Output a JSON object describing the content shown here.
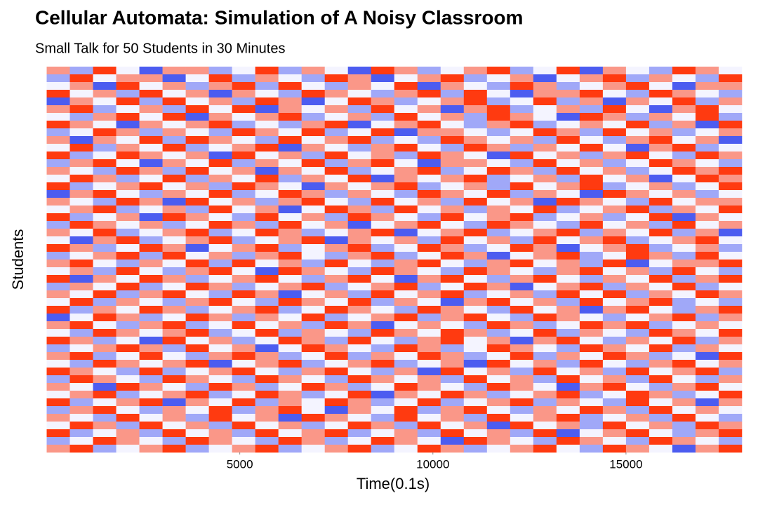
{
  "chart_data": {
    "type": "heatmap",
    "title": "Cellular Automata: Simulation of A Noisy Classroom",
    "subtitle": "Small Talk for 50 Students in 30 Minutes",
    "x_label": "Time(0.1s)",
    "y_label": "Students",
    "xlim": [
      -300,
      18200
    ],
    "xticks": [
      5000,
      10000,
      15000
    ],
    "tile_width": 600,
    "x": [
      300,
      900,
      1500,
      2100,
      2700,
      3300,
      3900,
      4500,
      5100,
      5700,
      6300,
      6900,
      7500,
      8100,
      8700,
      9300,
      9900,
      10500,
      11100,
      11700,
      12300,
      12900,
      13500,
      14100,
      14700,
      15300,
      15900,
      16500,
      17100,
      17700
    ],
    "clim": [
      -2,
      2
    ],
    "low_color": "#4c5cf0",
    "mid_color": "#f4f4ff",
    "high_color": "#ff3a10",
    "values": [
      [
        1,
        -1,
        2,
        0,
        -2,
        1,
        1,
        -1,
        0,
        2,
        -1,
        1,
        0,
        -2,
        2,
        1,
        -1,
        0,
        1,
        2,
        -1,
        0,
        2,
        -2,
        1,
        0,
        -1,
        2,
        1,
        0
      ],
      [
        -1,
        2,
        0,
        1,
        1,
        -2,
        0,
        2,
        -1,
        1,
        0,
        -1,
        2,
        1,
        -2,
        0,
        1,
        2,
        -1,
        0,
        1,
        -2,
        0,
        1,
        2,
        -1,
        1,
        0,
        -1,
        2
      ],
      [
        0,
        1,
        -2,
        2,
        0,
        1,
        -1,
        1,
        2,
        -1,
        2,
        0,
        -1,
        1,
        0,
        2,
        -2,
        1,
        0,
        -1,
        2,
        1,
        -1,
        0,
        1,
        2,
        0,
        -2,
        1,
        1
      ],
      [
        2,
        0,
        1,
        -1,
        2,
        0,
        1,
        -2,
        1,
        0,
        -1,
        2,
        1,
        0,
        -1,
        1,
        2,
        -1,
        2,
        0,
        -2,
        1,
        1,
        2,
        0,
        -1,
        2,
        1,
        0,
        -1
      ],
      [
        -2,
        1,
        0,
        2,
        -1,
        2,
        0,
        1,
        -1,
        2,
        1,
        -2,
        0,
        2,
        1,
        -1,
        0,
        1,
        2,
        -1,
        0,
        2,
        -1,
        1,
        -2,
        1,
        0,
        2,
        -1,
        1
      ],
      [
        1,
        2,
        -1,
        0,
        1,
        -1,
        2,
        0,
        2,
        -2,
        1,
        0,
        1,
        -1,
        2,
        0,
        1,
        -2,
        1,
        2,
        -1,
        0,
        1,
        -1,
        2,
        0,
        -2,
        1,
        2,
        0
      ],
      [
        0,
        -1,
        1,
        2,
        0,
        2,
        -2,
        1,
        0,
        1,
        2,
        -1,
        0,
        1,
        -1,
        2,
        0,
        1,
        -1,
        2,
        1,
        0,
        -2,
        2,
        1,
        -1,
        1,
        0,
        2,
        -1
      ],
      [
        2,
        1,
        0,
        -2,
        1,
        0,
        1,
        2,
        -1,
        0,
        -1,
        1,
        2,
        -2,
        0,
        1,
        2,
        0,
        -1,
        1,
        2,
        -1,
        0,
        1,
        0,
        2,
        -1,
        1,
        -2,
        2
      ],
      [
        -1,
        0,
        2,
        1,
        -1,
        1,
        0,
        -1,
        2,
        1,
        0,
        2,
        -1,
        0,
        2,
        -2,
        1,
        1,
        0,
        -1,
        0,
        2,
        1,
        -1,
        2,
        0,
        1,
        -1,
        0,
        1
      ],
      [
        1,
        -2,
        1,
        0,
        2,
        -1,
        2,
        1,
        0,
        -1,
        2,
        0,
        1,
        2,
        -1,
        0,
        -1,
        2,
        1,
        0,
        1,
        -1,
        2,
        0,
        -1,
        1,
        2,
        0,
        1,
        -2
      ],
      [
        0,
        2,
        -1,
        1,
        0,
        2,
        -1,
        0,
        1,
        2,
        -2,
        1,
        0,
        -1,
        1,
        2,
        0,
        -1,
        2,
        1,
        -1,
        1,
        0,
        2,
        0,
        -2,
        1,
        2,
        -1,
        0
      ],
      [
        2,
        -1,
        0,
        2,
        1,
        0,
        1,
        -2,
        2,
        0,
        1,
        -1,
        2,
        0,
        1,
        -1,
        2,
        1,
        0,
        -2,
        2,
        0,
        1,
        -1,
        1,
        2,
        0,
        -1,
        2,
        1
      ],
      [
        -1,
        1,
        2,
        0,
        -2,
        1,
        0,
        2,
        -1,
        1,
        0,
        2,
        -1,
        1,
        2,
        0,
        -2,
        1,
        1,
        0,
        -1,
        2,
        0,
        1,
        -1,
        0,
        2,
        1,
        0,
        -1
      ],
      [
        1,
        0,
        -1,
        2,
        1,
        -1,
        2,
        0,
        1,
        -2,
        1,
        0,
        2,
        -1,
        0,
        1,
        2,
        -1,
        0,
        2,
        1,
        -1,
        2,
        0,
        1,
        -1,
        0,
        2,
        1,
        2
      ],
      [
        0,
        2,
        1,
        -1,
        0,
        2,
        -1,
        1,
        0,
        2,
        -1,
        1,
        0,
        2,
        -2,
        1,
        0,
        1,
        2,
        -1,
        0,
        1,
        -1,
        2,
        0,
        1,
        -2,
        0,
        2,
        1
      ],
      [
        2,
        -1,
        0,
        1,
        2,
        0,
        1,
        -1,
        2,
        1,
        0,
        -2,
        1,
        0,
        1,
        2,
        -1,
        0,
        1,
        -1,
        2,
        0,
        1,
        2,
        -1,
        0,
        1,
        -1,
        0,
        2
      ],
      [
        -2,
        1,
        2,
        0,
        -1,
        1,
        0,
        2,
        -1,
        0,
        2,
        1,
        -1,
        1,
        0,
        -1,
        2,
        1,
        0,
        2,
        -1,
        1,
        0,
        -2,
        2,
        1,
        0,
        1,
        -1,
        0
      ],
      [
        1,
        0,
        -1,
        2,
        1,
        -2,
        2,
        0,
        1,
        -1,
        1,
        2,
        0,
        -1,
        2,
        0,
        1,
        -1,
        2,
        0,
        1,
        -2,
        2,
        1,
        0,
        -1,
        2,
        0,
        1,
        1
      ],
      [
        0,
        1,
        2,
        -1,
        0,
        1,
        -1,
        2,
        0,
        1,
        -2,
        0,
        2,
        1,
        -1,
        2,
        0,
        1,
        -1,
        1,
        0,
        2,
        -1,
        0,
        1,
        2,
        -1,
        1,
        0,
        2
      ],
      [
        2,
        -1,
        0,
        1,
        -2,
        2,
        1,
        0,
        -1,
        2,
        0,
        1,
        -1,
        2,
        1,
        0,
        -1,
        2,
        0,
        1,
        2,
        -1,
        0,
        1,
        -1,
        0,
        2,
        -2,
        1,
        0
      ],
      [
        -1,
        2,
        1,
        0,
        1,
        -1,
        0,
        2,
        1,
        -1,
        2,
        0,
        1,
        -2,
        0,
        1,
        2,
        0,
        -1,
        2,
        1,
        0,
        -1,
        2,
        0,
        1,
        -1,
        2,
        0,
        1
      ],
      [
        1,
        0,
        2,
        -1,
        0,
        1,
        2,
        -1,
        0,
        2,
        1,
        -1,
        0,
        1,
        2,
        -2,
        0,
        1,
        2,
        -1,
        0,
        1,
        2,
        -1,
        1,
        0,
        2,
        -1,
        1,
        -2
      ],
      [
        0,
        -2,
        1,
        2,
        -1,
        0,
        1,
        2,
        -1,
        0,
        1,
        2,
        -2,
        1,
        0,
        1,
        -1,
        2,
        0,
        1,
        -1,
        2,
        0,
        1,
        2,
        -1,
        0,
        1,
        2,
        0
      ],
      [
        2,
        1,
        -1,
        0,
        2,
        1,
        -2,
        0,
        1,
        2,
        -1,
        0,
        1,
        2,
        -1,
        0,
        2,
        1,
        -1,
        0,
        2,
        1,
        -2,
        0,
        1,
        2,
        -1,
        0,
        1,
        -1
      ],
      [
        -1,
        0,
        1,
        2,
        -1,
        2,
        0,
        1,
        -1,
        1,
        2,
        0,
        -1,
        1,
        2,
        -1,
        0,
        2,
        1,
        -2,
        0,
        1,
        2,
        -1,
        0,
        2,
        1,
        -1,
        2,
        0
      ],
      [
        1,
        2,
        0,
        -1,
        1,
        0,
        2,
        -1,
        2,
        0,
        1,
        -1,
        2,
        0,
        -1,
        1,
        2,
        0,
        -1,
        1,
        2,
        0,
        1,
        -1,
        2,
        -2,
        0,
        1,
        1,
        2
      ],
      [
        0,
        1,
        -1,
        2,
        0,
        -1,
        1,
        2,
        0,
        -2,
        2,
        1,
        0,
        -1,
        2,
        1,
        0,
        -1,
        2,
        1,
        0,
        -1,
        1,
        2,
        0,
        1,
        -1,
        2,
        0,
        -1
      ],
      [
        2,
        -2,
        1,
        0,
        2,
        1,
        -1,
        0,
        1,
        2,
        0,
        -1,
        1,
        2,
        0,
        -2,
        1,
        2,
        0,
        -1,
        1,
        2,
        0,
        -1,
        1,
        0,
        2,
        -1,
        1,
        2
      ],
      [
        -1,
        1,
        0,
        2,
        -1,
        0,
        2,
        1,
        -1,
        0,
        1,
        2,
        -1,
        0,
        1,
        2,
        -1,
        0,
        2,
        1,
        -2,
        0,
        1,
        2,
        -1,
        1,
        0,
        2,
        -1,
        0
      ],
      [
        1,
        0,
        2,
        -1,
        1,
        2,
        0,
        -1,
        2,
        1,
        -2,
        0,
        1,
        -1,
        2,
        0,
        1,
        2,
        -1,
        0,
        1,
        -1,
        2,
        0,
        2,
        -1,
        1,
        0,
        2,
        1
      ],
      [
        0,
        2,
        -1,
        1,
        0,
        -1,
        1,
        2,
        0,
        -1,
        2,
        1,
        0,
        2,
        -1,
        1,
        0,
        -2,
        1,
        2,
        0,
        1,
        -1,
        2,
        0,
        1,
        2,
        -1,
        0,
        -1
      ],
      [
        2,
        -1,
        1,
        0,
        2,
        1,
        -1,
        0,
        1,
        2,
        -1,
        0,
        2,
        1,
        0,
        -1,
        2,
        1,
        0,
        -1,
        2,
        0,
        1,
        -2,
        1,
        2,
        0,
        -1,
        1,
        2
      ],
      [
        -2,
        0,
        2,
        1,
        -1,
        0,
        2,
        1,
        -1,
        1,
        0,
        2,
        -1,
        0,
        1,
        2,
        -1,
        1,
        2,
        0,
        -1,
        2,
        1,
        0,
        -1,
        0,
        1,
        2,
        -1,
        1
      ],
      [
        1,
        2,
        0,
        -1,
        1,
        2,
        -1,
        0,
        2,
        0,
        1,
        -1,
        2,
        1,
        -2,
        0,
        1,
        0,
        -1,
        2,
        1,
        -1,
        0,
        2,
        1,
        2,
        -1,
        0,
        1,
        0
      ],
      [
        0,
        -1,
        2,
        1,
        0,
        1,
        2,
        -1,
        0,
        2,
        -1,
        1,
        0,
        -1,
        2,
        1,
        0,
        2,
        1,
        -1,
        0,
        2,
        -1,
        1,
        0,
        -1,
        2,
        1,
        0,
        2
      ],
      [
        2,
        1,
        -1,
        0,
        -2,
        2,
        0,
        1,
        -1,
        0,
        2,
        1,
        -1,
        2,
        0,
        -1,
        1,
        2,
        0,
        1,
        -2,
        1,
        2,
        0,
        -1,
        1,
        0,
        2,
        -1,
        1
      ],
      [
        -1,
        0,
        1,
        2,
        1,
        -1,
        2,
        0,
        1,
        -2,
        0,
        2,
        1,
        0,
        -1,
        2,
        1,
        -1,
        0,
        2,
        1,
        0,
        -1,
        2,
        1,
        0,
        2,
        -1,
        1,
        0
      ],
      [
        1,
        2,
        -1,
        0,
        2,
        0,
        -1,
        1,
        2,
        1,
        -1,
        0,
        2,
        -1,
        1,
        0,
        2,
        1,
        -1,
        0,
        2,
        -1,
        1,
        0,
        2,
        1,
        -1,
        0,
        -2,
        2
      ],
      [
        0,
        -1,
        2,
        1,
        0,
        1,
        2,
        -2,
        0,
        1,
        2,
        -1,
        0,
        1,
        2,
        -1,
        0,
        1,
        -2,
        2,
        0,
        1,
        -1,
        2,
        0,
        -1,
        1,
        2,
        0,
        1
      ],
      [
        2,
        1,
        0,
        -1,
        2,
        -1,
        0,
        1,
        2,
        0,
        -1,
        1,
        2,
        0,
        -1,
        1,
        -2,
        2,
        0,
        1,
        -1,
        2,
        0,
        1,
        -1,
        2,
        0,
        1,
        2,
        -1
      ],
      [
        -1,
        2,
        1,
        0,
        -1,
        2,
        1,
        0,
        -1,
        2,
        1,
        0,
        -1,
        2,
        1,
        0,
        1,
        -1,
        2,
        0,
        1,
        -1,
        2,
        0,
        1,
        -1,
        2,
        0,
        -1,
        1
      ],
      [
        1,
        0,
        -2,
        2,
        1,
        0,
        -1,
        2,
        1,
        -1,
        0,
        2,
        1,
        -1,
        0,
        2,
        1,
        0,
        -1,
        2,
        1,
        0,
        -2,
        1,
        2,
        0,
        -1,
        1,
        2,
        0
      ],
      [
        0,
        1,
        2,
        -1,
        0,
        1,
        2,
        -1,
        0,
        2,
        1,
        -1,
        0,
        2,
        -2,
        1,
        0,
        2,
        1,
        -1,
        0,
        1,
        2,
        -1,
        0,
        2,
        1,
        -1,
        0,
        2
      ],
      [
        2,
        -1,
        0,
        1,
        2,
        -2,
        1,
        0,
        2,
        -1,
        1,
        0,
        2,
        1,
        -1,
        0,
        2,
        -1,
        0,
        1,
        2,
        -1,
        1,
        0,
        -1,
        2,
        0,
        1,
        -2,
        1
      ],
      [
        -1,
        1,
        2,
        0,
        -1,
        1,
        0,
        2,
        -1,
        1,
        2,
        0,
        -2,
        1,
        0,
        2,
        -1,
        1,
        2,
        0,
        -1,
        1,
        0,
        2,
        1,
        -1,
        2,
        0,
        1,
        0
      ],
      [
        1,
        0,
        -1,
        2,
        0,
        1,
        -1,
        2,
        0,
        1,
        -2,
        2,
        1,
        0,
        -1,
        2,
        0,
        1,
        -1,
        2,
        0,
        1,
        2,
        -1,
        0,
        1,
        -1,
        2,
        0,
        -1
      ],
      [
        0,
        2,
        1,
        -1,
        2,
        0,
        1,
        -1,
        2,
        0,
        1,
        -1,
        0,
        2,
        1,
        -1,
        2,
        0,
        1,
        -2,
        2,
        0,
        1,
        -1,
        2,
        0,
        1,
        -1,
        2,
        1
      ],
      [
        2,
        -1,
        0,
        1,
        -1,
        2,
        0,
        1,
        -1,
        2,
        0,
        1,
        2,
        -1,
        0,
        1,
        -1,
        2,
        0,
        1,
        -1,
        2,
        -2,
        0,
        1,
        2,
        0,
        -1,
        1,
        2
      ],
      [
        -1,
        0,
        2,
        1,
        0,
        -1,
        2,
        1,
        0,
        -1,
        2,
        1,
        -1,
        0,
        2,
        1,
        0,
        -2,
        2,
        1,
        0,
        -1,
        2,
        1,
        0,
        -1,
        2,
        1,
        0,
        -1
      ],
      [
        1,
        2,
        -1,
        0,
        1,
        2,
        -1,
        0,
        1,
        2,
        -1,
        0,
        1,
        2,
        -1,
        0,
        2,
        1,
        -1,
        0,
        1,
        2,
        0,
        -1,
        2,
        1,
        0,
        -2,
        1,
        2
      ]
    ]
  }
}
